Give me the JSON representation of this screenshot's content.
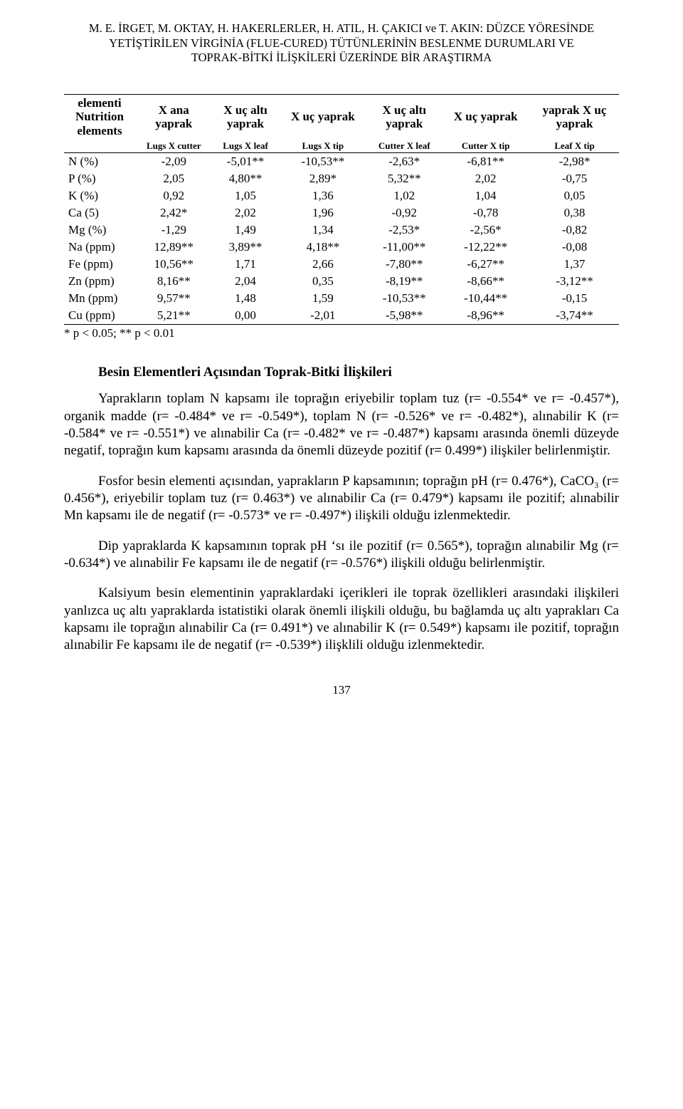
{
  "running_head": {
    "line1": "M. E. İRGET, M. OKTAY, H. HAKERLERLER, H. ATIL, H. ÇAKICI ve T. AKIN:  DÜZCE YÖRESİNDE",
    "line2": "YETİŞTİRİLEN  VİRGİNİA (FLUE-CURED) TÜTÜNLERİNİN BESLENME DURUMLARI VE",
    "line3": "TOPRAK-BİTKİ İLİŞKİLERİ ÜZERİNDE BİR ARAŞTIRMA"
  },
  "table": {
    "type": "table",
    "header_row_a": [
      "elementi\nNutrition\nelements",
      "X ana\nyaprak",
      "X uç altı\nyaprak",
      "X uç yaprak",
      "X uç altı\nyaprak",
      "X uç yaprak",
      "yaprak X uç\nyaprak"
    ],
    "header_row_b": [
      "",
      "Lugs X cutter",
      "Lugs X  leaf",
      "Lugs X tip",
      "Cutter X leaf",
      "Cutter X tip",
      "Leaf X tip"
    ],
    "rows": [
      [
        "N (%)",
        "-2,09",
        "-5,01**",
        "-10,53**",
        "-2,63*",
        "-6,81**",
        "-2,98*"
      ],
      [
        "P (%)",
        "2,05",
        "4,80**",
        "2,89*",
        "5,32**",
        "2,02",
        "-0,75"
      ],
      [
        "K (%)",
        "0,92",
        "1,05",
        "1,36",
        "1,02",
        "1,04",
        "0,05"
      ],
      [
        "Ca (5)",
        "2,42*",
        "2,02",
        "1,96",
        "-0,92",
        "-0,78",
        "0,38"
      ],
      [
        "Mg (%)",
        "-1,29",
        "1,49",
        "1,34",
        "-2,53*",
        "-2,56*",
        "-0,82"
      ],
      [
        "Na (ppm)",
        "12,89**",
        "3,89**",
        "4,18**",
        "-11,00**",
        "-12,22**",
        "-0,08"
      ],
      [
        "Fe (ppm)",
        "10,56**",
        "1,71",
        "2,66",
        "-7,80**",
        "-6,27**",
        "1,37"
      ],
      [
        "Zn (ppm)",
        "8,16**",
        "2,04",
        "0,35",
        "-8,19**",
        "-8,66**",
        "-3,12**"
      ],
      [
        "Mn (ppm)",
        "9,57**",
        "1,48",
        "1,59",
        "-10,53**",
        "-10,44**",
        "-0,15"
      ],
      [
        "Cu (ppm)",
        "5,21**",
        "0,00",
        "-2,01",
        "-5,98**",
        "-8,96**",
        "-3,74**"
      ]
    ],
    "footnote": "*  p < 0.05; **   p < 0.01"
  },
  "section_title": "Besin Elementleri Açısından Toprak-Bitki İlişkileri",
  "paragraphs": {
    "p1": "Yaprakların toplam N kapsamı ile toprağın eriyebilir toplam tuz (r= -0.554* ve r= -0.457*), organik  madde  (r= -0.484* ve  r= -0.549*),  toplam  N (r= -0.526*  ve r= -0.482*),  alınabilir K  (r= -0.584*  ve  r= -0.551*) ve  alınabilir  Ca  (r= -0.482* ve r= -0.487*) kapsamı arasında önemli düzeyde negatif, toprağın kum kapsamı arasında da önemli düzeyde pozitif (r= 0.499*) ilişkiler belirlenmiştir.",
    "p2": "Fosfor besin  elementi  açısından,  yaprakların  P   kapsamının;  toprağın  pH (r= 0.476*),  CaCO₃  (r= 0.456*),  eriyebilir  toplam  tuz  (r= 0.463*)  ve  alınabilir Ca (r= 0.479*) kapsamı ile  pozitif;  alınabilir  Mn  kapsamı  ile de  negatif  (r= -0.573* ve r= -0.497*) ilişkili olduğu izlenmektedir.",
    "p3": "Dip yapraklarda K kapsamının toprak pH ‘sı ile pozitif (r= 0.565*), toprağın alınabilir Mg  (r= -0.634*)  ve  alınabilir  Fe  kapsamı  ile  de  negatif  (r= -0.576*)  ilişkili olduğu belirlenmiştir.",
    "p4": "Kalsiyum besin elementinin yapraklardaki içerikleri ile toprak özellikleri arasındaki ilişkileri yanlızca uç altı yapraklarda istatistiki olarak önemli ilişkili olduğu, bu bağlamda uç altı yaprakları Ca kapsamı ile toprağın alınabilir Ca (r= 0.491*) ve alınabilir K  (r= 0.549*)  kapsamı  ile  pozitif,  toprağın  alınabilir  Fe  kapsamı  ile  de  negatif  (r= -0.539*) ilişklili olduğu izlenmektedir."
  },
  "page_number": "137",
  "colors": {
    "background": "#ffffff",
    "text": "#000000",
    "rule": "#000000"
  },
  "fonts": {
    "body_family": "Times New Roman",
    "body_size_pt": 11,
    "title_size_pt": 11,
    "table_size_pt": 10
  }
}
